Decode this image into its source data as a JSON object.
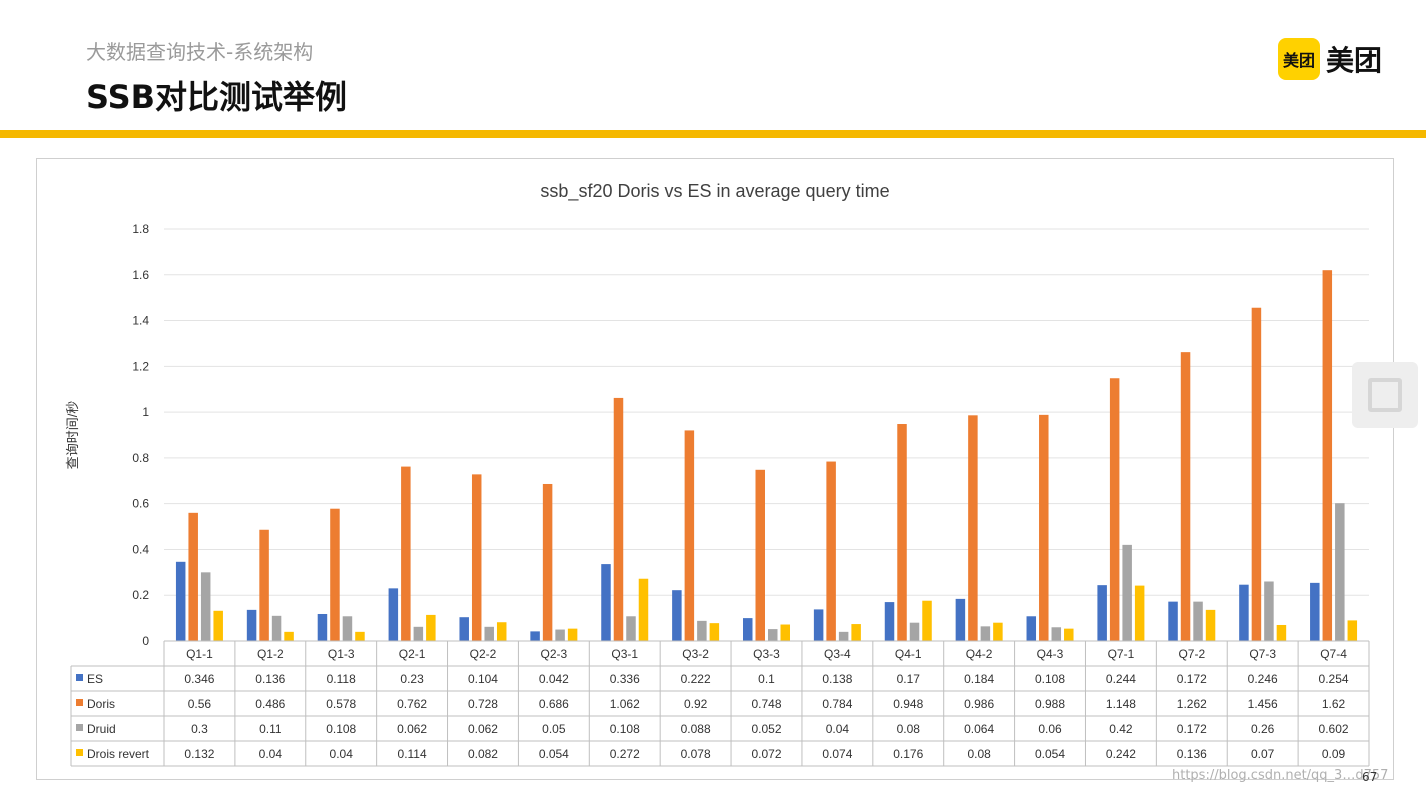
{
  "header": {
    "subtitle": "大数据查询技术-系统架构",
    "title": "SSB对比测试举例",
    "logo_box": "美团",
    "logo_text": "美团"
  },
  "footer": {
    "page_number": "67",
    "watermark": "https://blog.csdn.net/qq_3…d757"
  },
  "chart_data": {
    "type": "bar",
    "title": "ssb_sf20  Doris vs ES in average query time",
    "ylabel": "查询时间/秒",
    "xlabel": "",
    "ylim": [
      0,
      1.8
    ],
    "yticks": [
      "0",
      "0.2",
      "0.4",
      "0.6",
      "0.8",
      "1",
      "1.2",
      "1.4",
      "1.6",
      "1.8"
    ],
    "grid": true,
    "legend": "data-table-left",
    "categories": [
      "Q1-1",
      "Q1-2",
      "Q1-3",
      "Q2-1",
      "Q2-2",
      "Q2-3",
      "Q3-1",
      "Q3-2",
      "Q3-3",
      "Q3-4",
      "Q4-1",
      "Q4-2",
      "Q4-3",
      "Q7-1",
      "Q7-2",
      "Q7-3",
      "Q7-4"
    ],
    "series": [
      {
        "name": "ES",
        "color": "#4472c4",
        "values": [
          0.346,
          0.136,
          0.118,
          0.23,
          0.104,
          0.042,
          0.336,
          0.222,
          0.1,
          0.138,
          0.17,
          0.184,
          0.108,
          0.244,
          0.172,
          0.246,
          0.254
        ]
      },
      {
        "name": "Doris",
        "color": "#ed7d31",
        "values": [
          0.56,
          0.486,
          0.578,
          0.762,
          0.728,
          0.686,
          1.062,
          0.92,
          0.748,
          0.784,
          0.948,
          0.986,
          0.988,
          1.148,
          1.262,
          1.456,
          1.62
        ]
      },
      {
        "name": "Druid",
        "color": "#a5a5a5",
        "values": [
          0.3,
          0.11,
          0.108,
          0.062,
          0.062,
          0.05,
          0.108,
          0.088,
          0.052,
          0.04,
          0.08,
          0.064,
          0.06,
          0.42,
          0.172,
          0.26,
          0.602
        ]
      },
      {
        "name": "Drois revert",
        "color": "#ffc000",
        "values": [
          0.132,
          0.04,
          0.04,
          0.114,
          0.082,
          0.054,
          0.272,
          0.078,
          0.072,
          0.074,
          0.176,
          0.08,
          0.054,
          0.242,
          0.136,
          0.07,
          0.09
        ]
      }
    ]
  }
}
